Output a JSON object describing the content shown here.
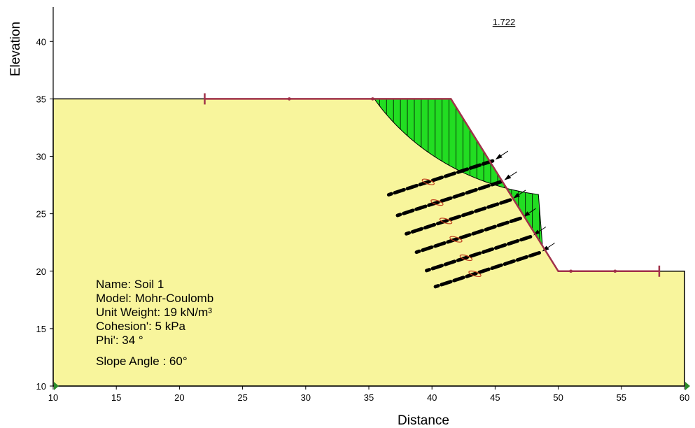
{
  "chart_data": {
    "type": "slope-stability-diagram",
    "title": "",
    "xlabel": "Distance",
    "ylabel": "Elevation",
    "xlim": [
      10,
      60
    ],
    "ylim": [
      10,
      43
    ],
    "x_ticks": [
      "10",
      "15",
      "20",
      "25",
      "30",
      "35",
      "40",
      "45",
      "50",
      "55",
      "60"
    ],
    "y_ticks": [
      "10",
      "15",
      "20",
      "25",
      "30",
      "35",
      "40"
    ],
    "factor_of_safety": "1.722",
    "ground_profile": [
      [
        10,
        35
      ],
      [
        41.5,
        35
      ],
      [
        50,
        20
      ],
      [
        60,
        20
      ]
    ],
    "slip_surface": {
      "entry": [
        35.3,
        35
      ],
      "exit": [
        47.8,
        22.2
      ],
      "center": [
        51,
        45
      ],
      "radius": 18.5
    },
    "entry_exit_markers": [
      [
        22,
        35
      ],
      [
        58,
        20
      ]
    ],
    "surface_points": [
      [
        28.7,
        35
      ],
      [
        35.3,
        35
      ],
      [
        51,
        20
      ],
      [
        54.5,
        20
      ]
    ],
    "nails": {
      "count": 6,
      "angle_deg": 30,
      "heads": [
        [
          44.8,
          29.6
        ],
        [
          45.5,
          27.8
        ],
        [
          46.2,
          26.2
        ],
        [
          47.0,
          24.6
        ],
        [
          47.8,
          23.0
        ],
        [
          48.5,
          21.6
        ]
      ],
      "length": 9.5
    },
    "soil": {
      "color": "#f8f59c",
      "slip_mass_color": "#22dd22",
      "surface_line_color": "#a0324a"
    },
    "info_lines": [
      "Name: Soil 1",
      "Model: Mohr-Coulomb",
      "Unit Weight: 19 kN/m³",
      "Cohesion': 5 kPa",
      "Phi': 34 °",
      "Slope Angle : 60°"
    ]
  }
}
